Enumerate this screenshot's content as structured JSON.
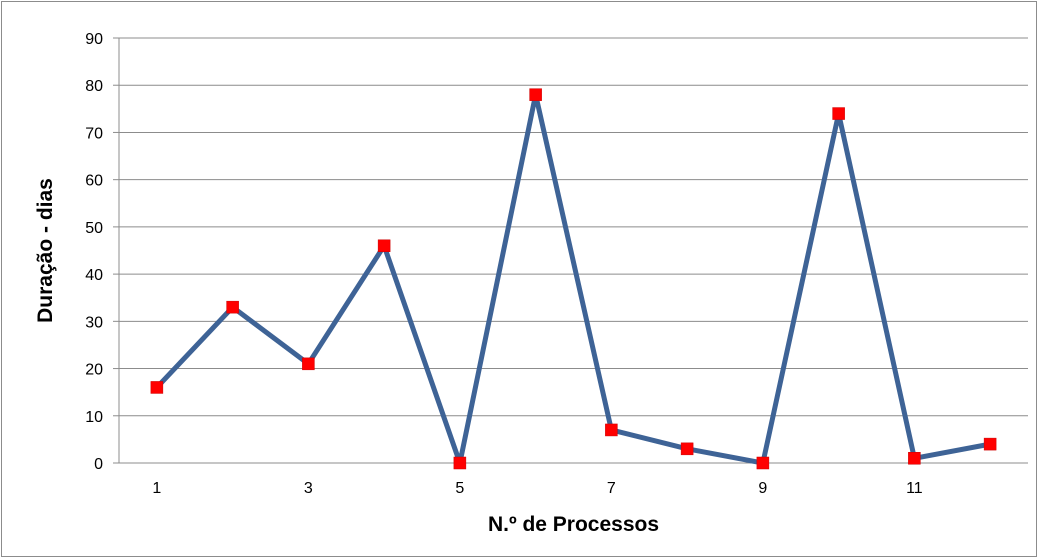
{
  "chart_data": {
    "type": "line",
    "title": "",
    "xlabel": "N.º de Processos",
    "ylabel": "Duração - dias",
    "x": [
      1,
      2,
      3,
      4,
      5,
      6,
      7,
      8,
      9,
      10,
      11,
      12
    ],
    "x_tick_labels": [
      "1",
      "3",
      "5",
      "7",
      "9",
      "11"
    ],
    "series": [
      {
        "values": [
          16,
          33,
          21,
          46,
          0,
          78,
          7,
          3,
          0,
          74,
          1,
          4
        ],
        "line_color": "#3E6396",
        "marker_color": "#FF0000",
        "marker": "square"
      }
    ],
    "ylim": [
      0,
      90
    ],
    "y_ticks": [
      0,
      10,
      20,
      30,
      40,
      50,
      60,
      70,
      80,
      90
    ],
    "grid": "horizontal",
    "legend": "none"
  }
}
